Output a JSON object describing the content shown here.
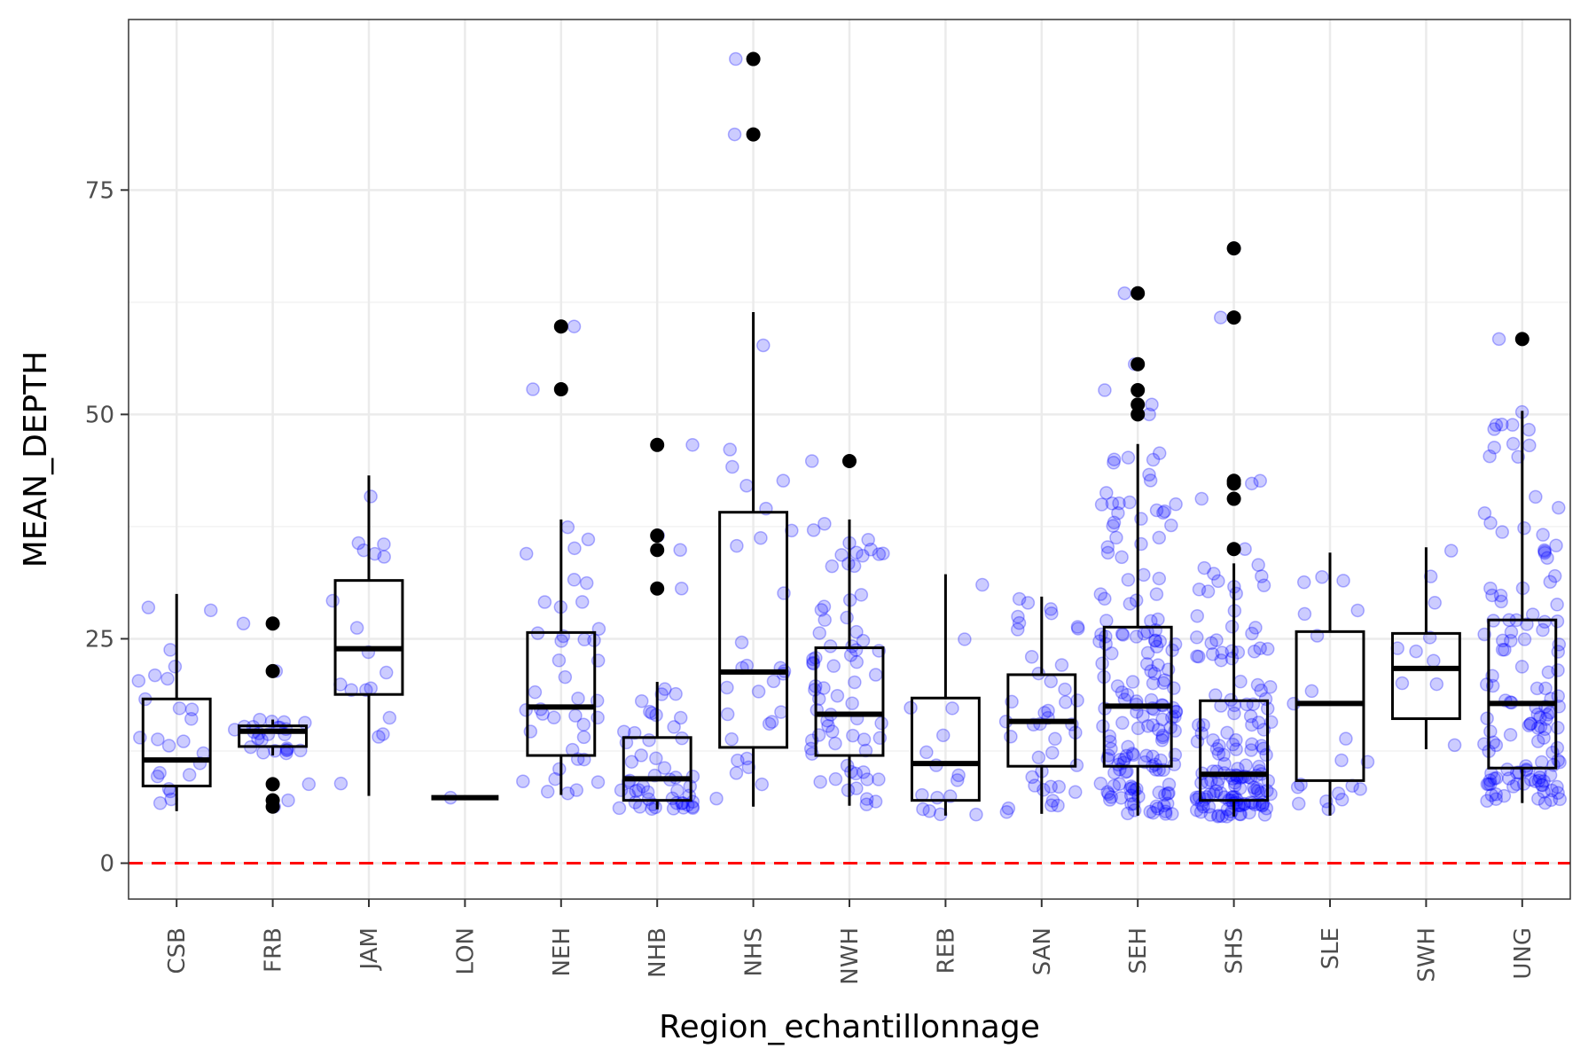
{
  "chart_data": {
    "type": "boxplot",
    "xlabel": "Region_echantillonnage",
    "ylabel": "MEAN_DEPTH",
    "ylim": [
      -4,
      94
    ],
    "yticks": [
      0,
      25,
      50,
      75
    ],
    "grid": true,
    "reference_line": {
      "y": 0,
      "color": "#ff0000",
      "style": "dashed"
    },
    "colors": {
      "jitter": "#0000ff",
      "box": "#000000",
      "outlier": "#000000"
    },
    "categories": [
      "CSB",
      "FRB",
      "JAM",
      "LON",
      "NEH",
      "NHB",
      "NHS",
      "NWH",
      "REB",
      "SAN",
      "SEH",
      "SHS",
      "SLE",
      "SWH",
      "UNG"
    ],
    "boxes": [
      {
        "q1": 8.6,
        "median": 11.5,
        "q3": 18.3,
        "low": 5.8,
        "high": 30.0,
        "outliers": []
      },
      {
        "q1": 13.0,
        "median": 14.7,
        "q3": 15.3,
        "low": 12.0,
        "high": 16.0,
        "outliers": [
          26.7,
          21.4,
          8.8,
          7.0,
          6.3
        ]
      },
      {
        "q1": 18.8,
        "median": 23.9,
        "q3": 31.5,
        "low": 7.5,
        "high": 43.2,
        "outliers": []
      },
      {
        "q1": 7.3,
        "median": 7.3,
        "q3": 7.3,
        "low": 7.3,
        "high": 7.3,
        "outliers": []
      },
      {
        "q1": 12.0,
        "median": 17.4,
        "q3": 25.7,
        "low": 7.6,
        "high": 38.3,
        "outliers": [
          59.8,
          52.8
        ]
      },
      {
        "q1": 7.0,
        "median": 9.4,
        "q3": 14.0,
        "low": 6.0,
        "high": 20.2,
        "outliers": [
          46.6,
          36.5,
          34.9,
          30.6
        ]
      },
      {
        "q1": 12.9,
        "median": 21.3,
        "q3": 39.1,
        "low": 6.3,
        "high": 61.4,
        "outliers": [
          89.6,
          81.2
        ]
      },
      {
        "q1": 12.0,
        "median": 16.6,
        "q3": 24.0,
        "low": 6.4,
        "high": 38.3,
        "outliers": [
          44.8
        ]
      },
      {
        "q1": 7.0,
        "median": 11.1,
        "q3": 18.4,
        "low": 5.3,
        "high": 32.2,
        "outliers": []
      },
      {
        "q1": 10.8,
        "median": 15.8,
        "q3": 21.0,
        "low": 5.5,
        "high": 29.7,
        "outliers": []
      },
      {
        "q1": 10.8,
        "median": 17.5,
        "q3": 26.3,
        "low": 5.3,
        "high": 46.7,
        "outliers": [
          63.5,
          55.6,
          52.7,
          51.1,
          50.0
        ]
      },
      {
        "q1": 7.0,
        "median": 9.9,
        "q3": 18.1,
        "low": 5.2,
        "high": 33.4,
        "outliers": [
          68.5,
          60.8,
          42.6,
          42.3,
          40.6,
          35.0
        ]
      },
      {
        "q1": 9.2,
        "median": 17.8,
        "q3": 25.8,
        "low": 5.3,
        "high": 34.6,
        "outliers": []
      },
      {
        "q1": 16.1,
        "median": 21.7,
        "q3": 25.6,
        "low": 12.7,
        "high": 35.2,
        "outliers": []
      },
      {
        "q1": 10.6,
        "median": 17.8,
        "q3": 27.1,
        "low": 6.7,
        "high": 50.4,
        "outliers": [
          58.4
        ]
      }
    ],
    "jitter_counts": [
      24,
      24,
      18,
      1,
      40,
      50,
      30,
      70,
      16,
      42,
      160,
      150,
      20,
      10,
      130
    ]
  }
}
